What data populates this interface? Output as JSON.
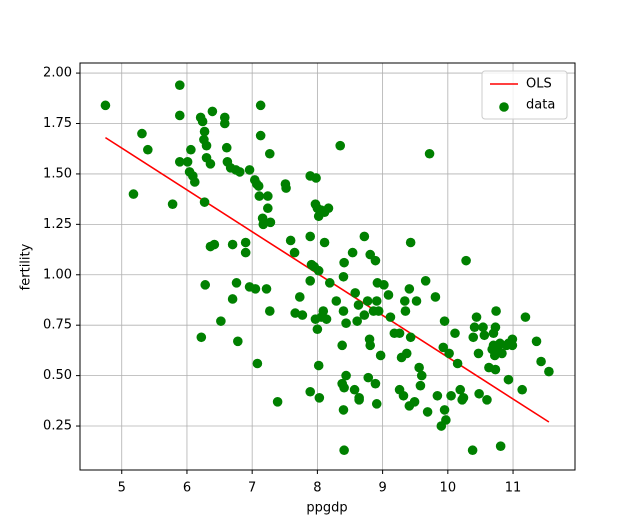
{
  "chart_data": {
    "type": "scatter",
    "xlabel": "ppgdp",
    "ylabel": "fertility",
    "xlim": [
      4.36,
      11.95
    ],
    "ylim": [
      0.032,
      2.05
    ],
    "xticks": [
      5,
      6,
      7,
      8,
      9,
      10,
      11
    ],
    "yticks": [
      {
        "value": 0.25,
        "label": "0.25"
      },
      {
        "value": 0.5,
        "label": "0.50"
      },
      {
        "value": 0.75,
        "label": "0.75"
      },
      {
        "value": 1.0,
        "label": "1.00"
      },
      {
        "value": 1.25,
        "label": "1.25"
      },
      {
        "value": 1.5,
        "label": "1.50"
      },
      {
        "value": 1.75,
        "label": "1.75"
      },
      {
        "value": 2.0,
        "label": "2.00"
      }
    ],
    "grid": true,
    "legend": "upper right",
    "series": [
      {
        "name": "OLS",
        "type": "line",
        "color": "#ff0000",
        "x": [
          4.75,
          11.55
        ],
        "values": [
          1.68,
          0.27
        ]
      },
      {
        "name": "data",
        "type": "scatter",
        "color": "#008000",
        "x": [
          4.75,
          5.18,
          5.31,
          5.4,
          5.78,
          5.89,
          5.89,
          5.89,
          6.01,
          6.06,
          6.04,
          6.09,
          6.12,
          6.21,
          6.24,
          6.27,
          6.26,
          6.3,
          6.3,
          6.36,
          6.39,
          6.27,
          6.28,
          6.22,
          6.36,
          6.42,
          6.52,
          6.58,
          6.58,
          6.61,
          6.62,
          6.67,
          6.75,
          6.81,
          6.7,
          6.7,
          6.76,
          6.78,
          6.9,
          6.9,
          6.96,
          6.96,
          7.05,
          7.04,
          7.07,
          7.1,
          7.11,
          7.13,
          7.13,
          7.16,
          7.17,
          7.24,
          7.27,
          7.24,
          7.28,
          7.22,
          7.27,
          7.08,
          7.39,
          7.51,
          7.52,
          7.59,
          7.65,
          7.66,
          7.73,
          7.77,
          7.89,
          7.89,
          7.89,
          7.91,
          7.95,
          7.98,
          7.97,
          8.0,
          8.02,
          8.06,
          8.11,
          8.17,
          8.02,
          8.11,
          7.97,
          8.0,
          8.06,
          8.09,
          8.19,
          8.14,
          8.02,
          7.89,
          8.03,
          8.35,
          8.41,
          8.4,
          8.29,
          8.4,
          8.44,
          8.38,
          8.41,
          8.44,
          8.38,
          8.4,
          8.41,
          8.54,
          8.58,
          8.63,
          8.61,
          8.57,
          8.64,
          8.64,
          8.72,
          8.77,
          8.72,
          8.81,
          8.8,
          8.81,
          8.78,
          8.86,
          8.91,
          8.92,
          8.89,
          8.94,
          8.97,
          8.89,
          8.91,
          9.02,
          9.09,
          9.12,
          9.18,
          9.26,
          9.26,
          9.32,
          9.34,
          9.35,
          9.37,
          9.29,
          9.41,
          9.43,
          9.43,
          9.41,
          9.49,
          9.52,
          9.56,
          9.58,
          9.6,
          9.66,
          9.69,
          9.72,
          9.81,
          9.84,
          9.9,
          9.93,
          9.95,
          9.95,
          9.97,
          10.02,
          10.05,
          10.11,
          10.15,
          10.19,
          10.22,
          10.24,
          10.28,
          10.38,
          10.39,
          10.41,
          10.44,
          10.47,
          10.48,
          10.54,
          10.56,
          10.6,
          10.63,
          10.68,
          10.74,
          10.73,
          10.7,
          10.7,
          10.72,
          10.73,
          10.77,
          10.83,
          10.8,
          10.81,
          10.9,
          10.93,
          10.93,
          10.99,
          10.99,
          11.19,
          11.14,
          11.36,
          11.43,
          11.55
        ],
        "values": [
          1.84,
          1.4,
          1.7,
          1.62,
          1.35,
          1.94,
          1.79,
          1.56,
          1.56,
          1.62,
          1.51,
          1.49,
          1.46,
          1.78,
          1.76,
          1.71,
          1.67,
          1.64,
          1.58,
          1.55,
          1.81,
          1.36,
          0.95,
          0.69,
          1.14,
          1.15,
          0.77,
          1.78,
          1.75,
          1.63,
          1.56,
          1.53,
          1.52,
          1.51,
          1.15,
          0.88,
          0.96,
          0.67,
          1.16,
          1.11,
          1.52,
          0.94,
          0.93,
          1.47,
          1.45,
          1.44,
          1.39,
          1.84,
          1.69,
          1.28,
          1.25,
          1.39,
          1.6,
          1.33,
          1.26,
          0.93,
          0.82,
          0.56,
          0.37,
          1.45,
          1.43,
          1.17,
          1.11,
          0.81,
          0.89,
          0.8,
          1.49,
          1.19,
          0.97,
          1.05,
          1.04,
          1.48,
          1.35,
          1.33,
          1.29,
          1.32,
          1.31,
          1.33,
          1.02,
          1.16,
          0.78,
          0.73,
          0.79,
          0.82,
          0.96,
          0.78,
          0.55,
          0.42,
          0.39,
          1.64,
          1.06,
          0.99,
          0.87,
          0.82,
          0.76,
          0.65,
          0.44,
          0.5,
          0.46,
          0.33,
          0.13,
          1.11,
          0.91,
          0.85,
          0.77,
          0.43,
          0.39,
          0.38,
          1.19,
          0.87,
          0.8,
          1.1,
          0.68,
          0.65,
          0.49,
          0.82,
          0.87,
          0.96,
          1.07,
          0.82,
          0.6,
          0.46,
          0.36,
          0.95,
          0.9,
          0.79,
          0.71,
          0.71,
          0.43,
          0.4,
          0.87,
          0.82,
          0.61,
          0.59,
          0.93,
          1.16,
          0.69,
          0.35,
          0.37,
          0.87,
          0.54,
          0.45,
          0.5,
          0.97,
          0.32,
          1.6,
          0.89,
          0.4,
          0.25,
          0.64,
          0.77,
          0.33,
          0.28,
          0.61,
          0.4,
          0.71,
          0.56,
          0.43,
          0.38,
          0.39,
          1.07,
          0.13,
          0.69,
          0.74,
          0.79,
          0.61,
          0.41,
          0.74,
          0.7,
          0.38,
          0.54,
          0.63,
          0.82,
          0.74,
          0.71,
          0.65,
          0.6,
          0.53,
          0.64,
          0.61,
          0.66,
          0.15,
          0.65,
          0.66,
          0.48,
          0.68,
          0.65,
          0.79,
          0.43,
          0.67,
          0.57,
          0.52
        ]
      }
    ]
  }
}
